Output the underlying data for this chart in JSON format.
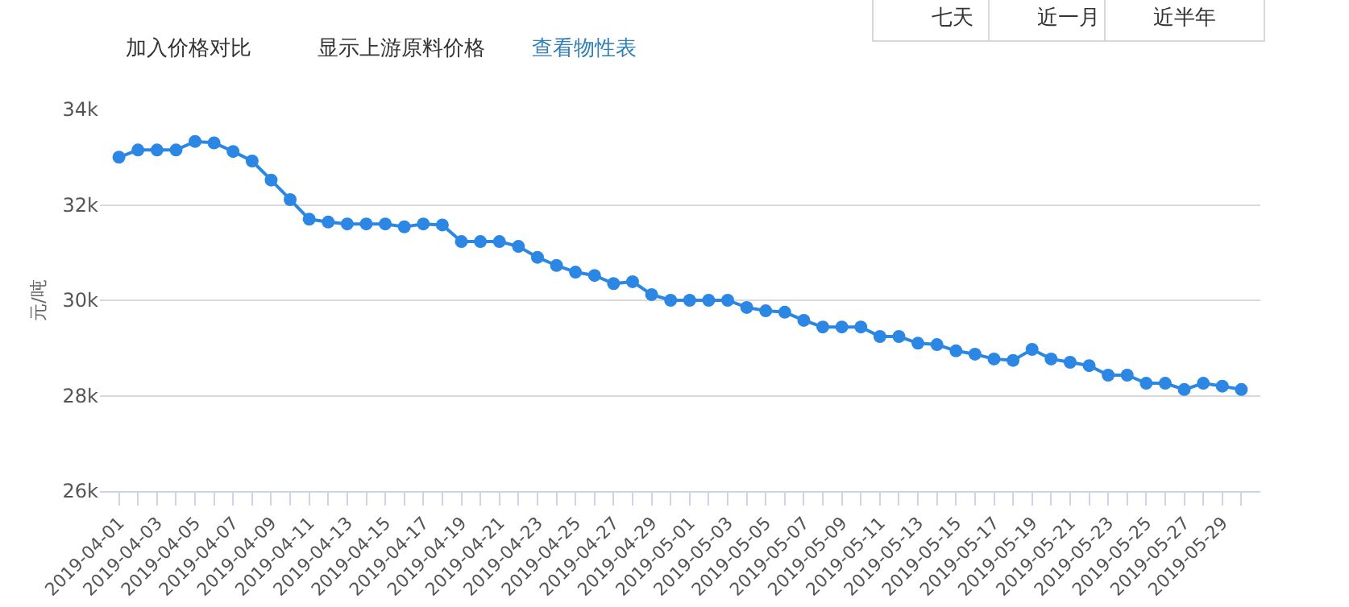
{
  "chart_data": {
    "type": "line",
    "ylabel": "元/吨",
    "categories": [
      "2019-04-01",
      null,
      "2019-04-03",
      null,
      "2019-04-05",
      null,
      "2019-04-07",
      null,
      "2019-04-09",
      null,
      "2019-04-11",
      null,
      "2019-04-13",
      null,
      "2019-04-15",
      null,
      "2019-04-17",
      null,
      "2019-04-19",
      null,
      "2019-04-21",
      null,
      "2019-04-23",
      null,
      "2019-04-25",
      null,
      "2019-04-27",
      null,
      "2019-04-29",
      null,
      "2019-05-01",
      null,
      "2019-05-03",
      null,
      "2019-05-05",
      null,
      "2019-05-07",
      null,
      "2019-05-09",
      null,
      "2019-05-11",
      null,
      "2019-05-13",
      null,
      "2019-05-15",
      null,
      "2019-05-17",
      null,
      "2019-05-19",
      null,
      "2019-05-21",
      null,
      "2019-05-23",
      null,
      "2019-05-25",
      null,
      "2019-05-27",
      null,
      "2019-05-29",
      null
    ],
    "series": [
      {
        "color": "#2b87e3",
        "values": [
          33000,
          33150,
          33150,
          33150,
          33330,
          33300,
          33120,
          32920,
          32520,
          32110,
          31700,
          31640,
          31600,
          31600,
          31600,
          31540,
          31600,
          31580,
          31230,
          31230,
          31230,
          31130,
          30900,
          30730,
          30590,
          30520,
          30350,
          30390,
          30120,
          30000,
          30000,
          30000,
          30000,
          29850,
          29780,
          29750,
          29580,
          29440,
          29440,
          29440,
          29240,
          29240,
          29100,
          29070,
          28940,
          28870,
          28770,
          28740,
          28970,
          28770,
          28700,
          28630,
          28430,
          28430,
          28260,
          28260,
          28130,
          28260,
          28200,
          28130
        ]
      }
    ],
    "ylim": [
      26000,
      34000
    ],
    "yticks": [
      {
        "value": 26000,
        "label": "26k"
      },
      {
        "value": 28000,
        "label": "28k"
      },
      {
        "value": 30000,
        "label": "30k"
      },
      {
        "value": 32000,
        "label": "32k"
      },
      {
        "value": 34000,
        "label": "34k"
      }
    ],
    "grid": "y",
    "legend": false,
    "marker": "circle",
    "line_style": "solid",
    "annotations": [
      "加入价格对比",
      "显示上游原料价格",
      "查看物性表",
      "七天",
      "近一月",
      "近半年"
    ]
  }
}
